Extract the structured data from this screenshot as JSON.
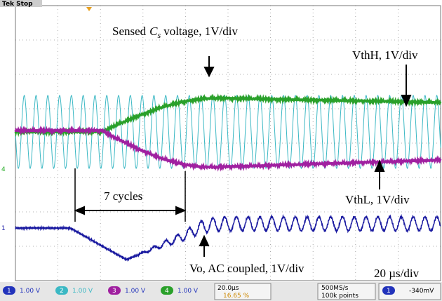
{
  "header": {
    "status": "Tek Stop"
  },
  "annotations": {
    "sensed": {
      "prefix": "Sensed",
      "symbol": "C",
      "subscript": "s",
      "suffix": "voltage, 1V/div"
    },
    "vthh": "VthH, 1V/div",
    "vthl": "VthL, 1V/div",
    "cycles": "7 cycles",
    "vo": "Vo, AC coupled, 1V/div",
    "timebase": "20 µs/div"
  },
  "markers": {
    "ch4": "4",
    "ch1": "1"
  },
  "status_bar": {
    "channels": [
      {
        "id": "1",
        "scale": "1.00 V"
      },
      {
        "id": "2",
        "scale": "1.00 V"
      },
      {
        "id": "3",
        "scale": "1.00 V"
      },
      {
        "id": "4",
        "scale": "1.00 V"
      }
    ],
    "horizontal": {
      "scale": "20.0µs",
      "position": "16.65 %"
    },
    "acquisition": {
      "rate": "500MS/s",
      "length": "100k points"
    },
    "trigger": {
      "source": "1",
      "level": "-340mV"
    }
  }
}
